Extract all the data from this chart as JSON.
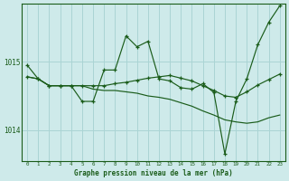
{
  "background_color": "#ceeaea",
  "grid_color": "#aad4d4",
  "line_color": "#1a5c1a",
  "title": "Graphe pression niveau de la mer (hPa)",
  "x_labels": [
    "0",
    "1",
    "2",
    "3",
    "4",
    "5",
    "6",
    "7",
    "8",
    "9",
    "10",
    "11",
    "12",
    "13",
    "14",
    "15",
    "16",
    "17",
    "18",
    "19",
    "20",
    "21",
    "22",
    "23"
  ],
  "x_values": [
    0,
    1,
    2,
    3,
    4,
    5,
    6,
    7,
    8,
    9,
    10,
    11,
    12,
    13,
    14,
    15,
    16,
    17,
    18,
    19,
    20,
    21,
    22,
    23
  ],
  "y_ticks": [
    1014,
    1015
  ],
  "ylim": [
    1013.55,
    1015.85
  ],
  "series1": [
    1014.95,
    1014.75,
    1014.65,
    1014.65,
    1014.65,
    1014.42,
    1014.42,
    1014.88,
    1014.88,
    1015.38,
    1015.22,
    1015.3,
    1014.75,
    1014.72,
    1014.62,
    1014.6,
    1014.68,
    1014.55,
    1013.65,
    1014.42,
    1014.75,
    1015.25,
    1015.58,
    1015.82
  ],
  "series2": [
    1014.78,
    1014.75,
    1014.65,
    1014.65,
    1014.65,
    1014.65,
    1014.65,
    1014.65,
    1014.68,
    1014.7,
    1014.73,
    1014.76,
    1014.78,
    1014.8,
    1014.76,
    1014.72,
    1014.65,
    1014.58,
    1014.5,
    1014.48,
    1014.56,
    1014.66,
    1014.74,
    1014.82
  ],
  "series3": [
    1014.78,
    1014.75,
    1014.65,
    1014.65,
    1014.65,
    1014.65,
    1014.6,
    1014.58,
    1014.58,
    1014.56,
    1014.54,
    1014.5,
    1014.48,
    1014.45,
    1014.4,
    1014.35,
    1014.28,
    1014.22,
    1014.15,
    1014.12,
    1014.1,
    1014.12,
    1014.18,
    1014.22
  ]
}
